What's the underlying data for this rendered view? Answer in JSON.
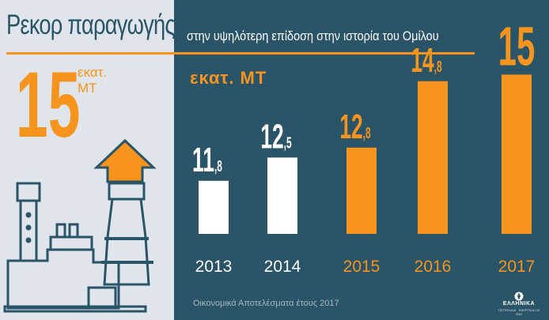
{
  "header": {
    "title": "Ρεκορ παραγωγής",
    "subtitle": "στην υψηλότερη επίδοση στην ιστορία του Ομίλου"
  },
  "highlight": {
    "value": "15",
    "unit_line1": "εκατ.",
    "unit_line2": "ΜΤ"
  },
  "chart_unit": "εκατ. ΜΤ",
  "footer": "Οικονομικά Αποτελέσματα έτους 2017",
  "logo": {
    "name": "ΕΛΛΗΝΙΚΑ",
    "line2": "ΠΕΤΡΕΛΑΙΑ",
    "tagline": "ΕΝΕΡΓΕΙΑ ΓΙΑ ΖΩΗ"
  },
  "colors": {
    "background": "#2a5468",
    "left_panel": "#dfe5ea",
    "accent": "#f7941d",
    "old_bar": "#ffffff"
  },
  "chart_data": {
    "type": "bar",
    "categories": [
      "2013",
      "2014",
      "2015",
      "2016",
      "2017"
    ],
    "values": [
      11.8,
      12.5,
      12.8,
      14.8,
      15
    ],
    "value_labels": [
      {
        "main": "11",
        "sub": ",8"
      },
      {
        "main": "12",
        "sub": ",5"
      },
      {
        "main": "12",
        "sub": ",8"
      },
      {
        "main": "14",
        "sub": ",8"
      },
      {
        "main": "15",
        "sub": ""
      }
    ],
    "highlighted": [
      false,
      false,
      true,
      true,
      true
    ],
    "ylabel": "εκατ. ΜΤ",
    "grid": false
  }
}
